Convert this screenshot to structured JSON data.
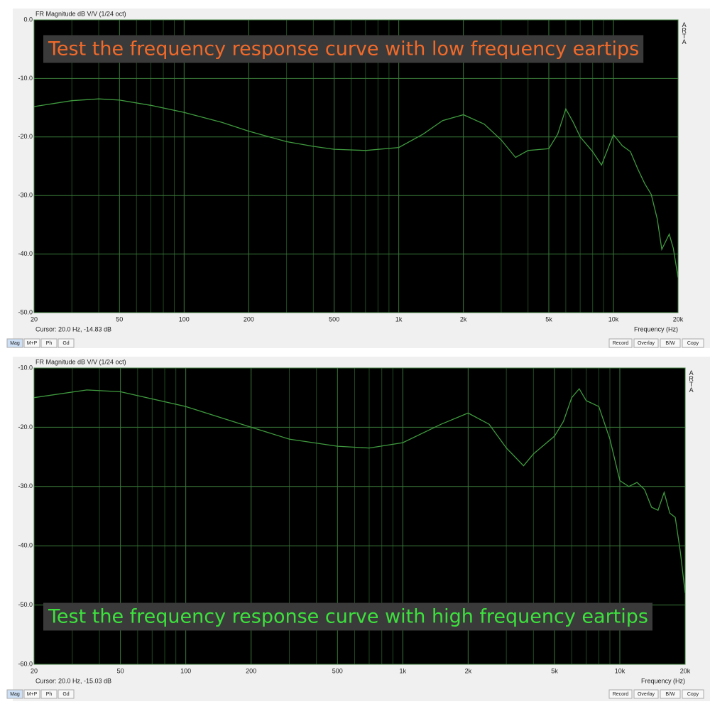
{
  "chart_data": [
    {
      "type": "line",
      "title": "FR Magnitude dB V/V (1/24 oct)",
      "annotation": "Test the frequency response curve with low frequency eartips",
      "annotation_color": "#f06a2a",
      "cursor": "Cursor: 20.0 Hz, -14.83 dB",
      "xlabel": "Frequency (Hz)",
      "side_label": "ARTA",
      "xscale": "log",
      "xlim": [
        20,
        20000
      ],
      "ylim": [
        -50,
        0
      ],
      "xticks": [
        20,
        50,
        100,
        200,
        500,
        {
          "value": 1000,
          "label": "1k"
        },
        {
          "value": 2000,
          "label": "2k"
        },
        {
          "value": 5000,
          "label": "5k"
        },
        {
          "value": 10000,
          "label": "10k"
        },
        {
          "value": 20000,
          "label": "20k"
        }
      ],
      "xgrid_minor": [
        30,
        40,
        60,
        70,
        80,
        90,
        300,
        400,
        600,
        700,
        800,
        900,
        3000,
        4000,
        6000,
        7000,
        8000,
        9000
      ],
      "yticks": [
        {
          "value": 0,
          "label": "0.0"
        },
        {
          "value": -10,
          "label": "-10.0"
        },
        {
          "value": -20,
          "label": "-20.0"
        },
        {
          "value": -30,
          "label": "-30.0"
        },
        {
          "value": -40,
          "label": "-40.0"
        },
        {
          "value": -50,
          "label": "-50.0"
        }
      ],
      "grid": true,
      "x": [
        20,
        30,
        40,
        50,
        70,
        100,
        150,
        200,
        300,
        400,
        500,
        700,
        1000,
        1300,
        1600,
        2000,
        2500,
        3000,
        3500,
        4000,
        5000,
        5500,
        6000,
        6500,
        7000,
        8000,
        8800,
        10000,
        11000,
        12000,
        13000,
        14000,
        15000,
        16000,
        16800,
        18200,
        19000,
        20000
      ],
      "series": [
        {
          "name": "FR",
          "color": "#3f9a3f",
          "values": [
            -14.8,
            -13.8,
            -13.5,
            -13.7,
            -14.6,
            -15.8,
            -17.5,
            -19,
            -20.8,
            -21.6,
            -22.1,
            -22.3,
            -21.8,
            -19.5,
            -17.2,
            -16.2,
            -17.8,
            -20.5,
            -23.5,
            -22.3,
            -22,
            -19.5,
            -15.2,
            -17.5,
            -20,
            -22.5,
            -24.8,
            -19.6,
            -21.5,
            -22.5,
            -25.5,
            -28,
            -29.8,
            -34,
            -39.2,
            -36.6,
            -39,
            -44
          ]
        }
      ],
      "tabs": [
        "Mag",
        "M+P",
        "Ph",
        "Gd"
      ],
      "buttons": [
        "Record",
        "Overlay",
        "B/W",
        "Copy"
      ]
    },
    {
      "type": "line",
      "title": "FR Magnitude dB V/V (1/24 oct)",
      "annotation": "Test the frequency response curve with high frequency eartips",
      "annotation_color": "#3de03d",
      "cursor": "Cursor: 20.0 Hz, -15.03 dB",
      "xlabel": "Frequency (Hz)",
      "side_label": "ARTA",
      "xscale": "log",
      "xlim": [
        20,
        20000
      ],
      "ylim": [
        -60,
        -10
      ],
      "xticks": [
        20,
        50,
        100,
        200,
        500,
        {
          "value": 1000,
          "label": "1k"
        },
        {
          "value": 2000,
          "label": "2k"
        },
        {
          "value": 5000,
          "label": "5k"
        },
        {
          "value": 10000,
          "label": "10k"
        },
        {
          "value": 20000,
          "label": "20k"
        }
      ],
      "xgrid_minor": [
        30,
        40,
        60,
        70,
        80,
        90,
        300,
        400,
        600,
        700,
        800,
        900,
        3000,
        4000,
        6000,
        7000,
        8000,
        9000
      ],
      "yticks": [
        {
          "value": -10,
          "label": "-10.0"
        },
        {
          "value": -20,
          "label": "-20.0"
        },
        {
          "value": -30,
          "label": "-30.0"
        },
        {
          "value": -40,
          "label": "-40.0"
        },
        {
          "value": -50,
          "label": "-50.0"
        },
        {
          "value": -60,
          "label": "-60.0"
        }
      ],
      "grid": true,
      "x": [
        20,
        35,
        50,
        100,
        200,
        300,
        500,
        700,
        1000,
        1500,
        2000,
        2500,
        3000,
        3600,
        4000,
        5000,
        5500,
        6000,
        6500,
        7000,
        8000,
        9000,
        10000,
        11000,
        12000,
        13000,
        14000,
        15000,
        16000,
        17000,
        18000,
        19000,
        20000
      ],
      "series": [
        {
          "name": "FR",
          "color": "#3f9a3f",
          "values": [
            -15,
            -13.7,
            -14,
            -16.5,
            -20,
            -22,
            -23.2,
            -23.5,
            -22.6,
            -19.5,
            -17.6,
            -19.5,
            -23.5,
            -26.5,
            -24.5,
            -21.5,
            -19,
            -15,
            -13.5,
            -15.5,
            -16.5,
            -22,
            -29,
            -30,
            -29.3,
            -30.5,
            -33.5,
            -34,
            -31,
            -34.5,
            -35.2,
            -41,
            -48
          ]
        }
      ],
      "tabs": [
        "Mag",
        "M+P",
        "Ph",
        "Gd"
      ],
      "buttons": [
        "Record",
        "Overlay",
        "B/W",
        "Copy"
      ]
    }
  ]
}
